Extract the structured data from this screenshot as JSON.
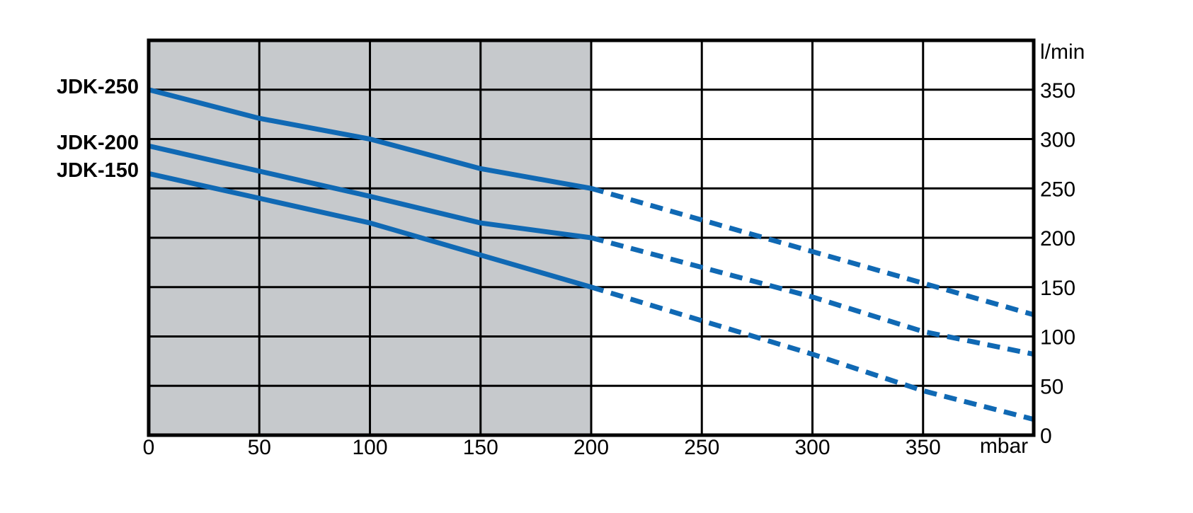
{
  "chart_data": {
    "type": "line",
    "title": "",
    "xlabel": "mbar",
    "ylabel": "l/min",
    "xlim": [
      0,
      400
    ],
    "ylim": [
      0,
      400
    ],
    "x_ticks": [
      0,
      50,
      100,
      150,
      200,
      250,
      300,
      350
    ],
    "y_ticks": [
      0,
      50,
      100,
      150,
      200,
      250,
      300,
      350
    ],
    "grid": true,
    "legend_position": "left of curve start points",
    "colors": {
      "line": "#1069b4",
      "shaded_region": "#c6c9cc",
      "grid": "#000000",
      "background": "#ffffff"
    },
    "shaded_region": {
      "x_from": 0,
      "x_to": 200
    },
    "series": [
      {
        "name": "JDK-250",
        "solid_points": [
          [
            0,
            350
          ],
          [
            50,
            321
          ],
          [
            100,
            300
          ],
          [
            150,
            270
          ],
          [
            200,
            250
          ]
        ],
        "dashed_points": [
          [
            200,
            250
          ],
          [
            400,
            122
          ]
        ]
      },
      {
        "name": "JDK-200",
        "solid_points": [
          [
            0,
            293
          ],
          [
            100,
            242
          ],
          [
            150,
            215
          ],
          [
            200,
            200
          ]
        ],
        "dashed_points": [
          [
            200,
            200
          ],
          [
            300,
            140
          ],
          [
            350,
            105
          ],
          [
            400,
            82
          ]
        ]
      },
      {
        "name": "JDK-150",
        "solid_points": [
          [
            0,
            265
          ],
          [
            100,
            215
          ],
          [
            200,
            150
          ]
        ],
        "dashed_points": [
          [
            200,
            150
          ],
          [
            300,
            82
          ],
          [
            350,
            45
          ],
          [
            400,
            16
          ]
        ]
      }
    ]
  }
}
